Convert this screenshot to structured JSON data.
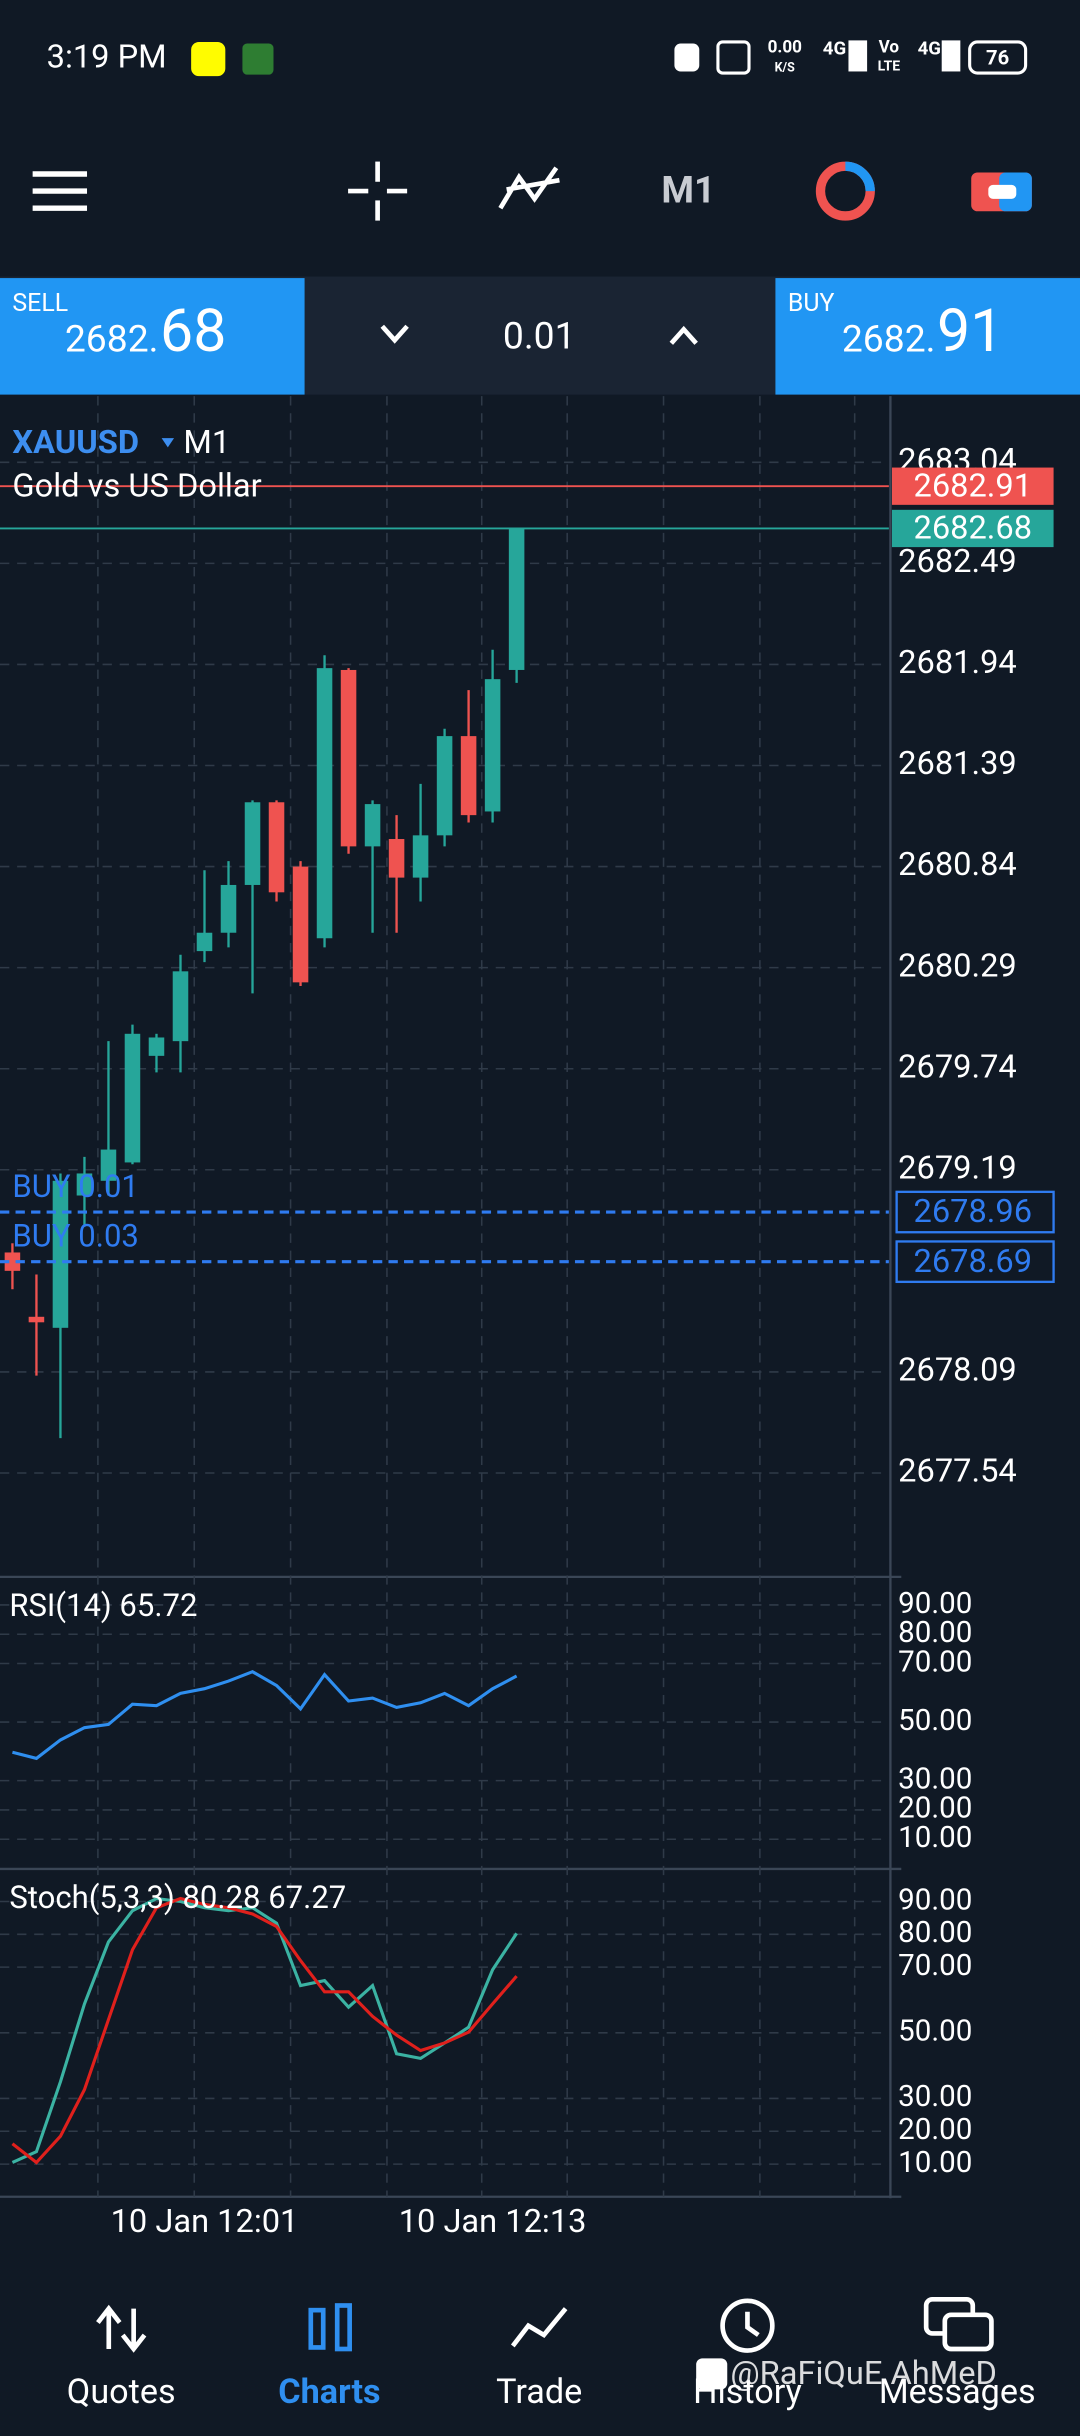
{
  "status_bar": {
    "time": "3:19 PM",
    "net_speed": "0.00",
    "net_unit": "K/S",
    "network_1": "4G",
    "volte": "Vo",
    "volte_sub": "LTE",
    "network_2": "4G",
    "battery": "76"
  },
  "toolbar": {
    "timeframe": "M1"
  },
  "trade_bar": {
    "sell_label": "SELL",
    "sell_price_main": "2682.",
    "sell_price_pips": "68",
    "volume": "0.01",
    "buy_label": "BUY",
    "buy_price_main": "2682.",
    "buy_price_pips": "91"
  },
  "chart_data": [
    {
      "type": "candlestick",
      "symbol": "XAUUSD",
      "timeframe": "M1",
      "description": "Gold vs US Dollar",
      "categories": [
        null,
        null,
        null,
        null,
        null,
        null,
        null,
        null,
        "10 Jan 12:01",
        null,
        null,
        null,
        null,
        null,
        null,
        null,
        null,
        null,
        null,
        null,
        "10 Jan 12:13",
        null
      ],
      "open": [
        2678.74,
        2678.39,
        2678.33,
        2679.05,
        2679.13,
        2679.23,
        2679.81,
        2679.89,
        2680.38,
        2680.48,
        2680.74,
        2681.19,
        2680.84,
        2680.45,
        2681.91,
        2680.95,
        2680.99,
        2680.78,
        2681.01,
        2681.55,
        2681.14,
        2681.91
      ],
      "high": [
        2678.79,
        2678.62,
        2679.17,
        2679.26,
        2679.89,
        2679.98,
        2679.93,
        2680.36,
        2680.82,
        2680.87,
        2681.2,
        2681.2,
        2680.87,
        2681.99,
        2681.92,
        2681.2,
        2681.12,
        2681.29,
        2681.59,
        2681.8,
        2682.02,
        2682.68
      ],
      "low": [
        2678.54,
        2678.07,
        2677.73,
        2678.88,
        2679.05,
        2679.22,
        2679.72,
        2679.72,
        2680.32,
        2680.4,
        2680.15,
        2680.65,
        2680.19,
        2680.4,
        2680.91,
        2680.48,
        2680.48,
        2680.65,
        2680.95,
        2681.08,
        2681.08,
        2681.84
      ],
      "close": [
        2678.64,
        2678.36,
        2679.13,
        2679.17,
        2679.3,
        2679.93,
        2679.91,
        2680.27,
        2680.48,
        2680.74,
        2681.19,
        2680.7,
        2680.21,
        2681.92,
        2680.95,
        2681.18,
        2680.78,
        2681.01,
        2681.55,
        2681.12,
        2681.86,
        2682.68
      ],
      "up_color": "#26a69a",
      "down_color": "#ef5350",
      "ylim": [
        2677.0,
        2683.4
      ],
      "yticks": [
        2683.04,
        2682.49,
        2681.94,
        2681.39,
        2680.84,
        2680.29,
        2679.74,
        2679.19,
        2678.09,
        2677.54
      ],
      "grid": true,
      "price_lines": [
        {
          "value": 2682.91,
          "color": "#ef5350"
        },
        {
          "value": 2682.68,
          "color": "#26a69a"
        }
      ],
      "orders": [
        {
          "label": "BUY 0.01",
          "value": 2678.96
        },
        {
          "label": "BUY 0.03",
          "value": 2678.69
        }
      ],
      "order_color": "#2f7bf0"
    },
    {
      "type": "line",
      "title": "RSI(14) 65.72",
      "series": [
        {
          "color": "#2f8ff0",
          "values": [
            39.7,
            37.6,
            43.9,
            48.1,
            49.2,
            56.1,
            55.6,
            59.8,
            61.4,
            64.0,
            67.2,
            62.5,
            54.5,
            66.2,
            57.2,
            58.2,
            55.0,
            56.6,
            59.8,
            55.6,
            61.4,
            65.72
          ]
        }
      ],
      "ylim": [
        2.5,
        98
      ],
      "yticks": [
        {
          "value": 90,
          "label": "90.00"
        },
        {
          "value": 80,
          "label": "80.00"
        },
        {
          "value": 70,
          "label": "70.00"
        },
        {
          "value": 50,
          "label": "50.00"
        },
        {
          "value": 30,
          "label": "30.00"
        },
        {
          "value": 20,
          "label": "20.00"
        },
        {
          "value": 10,
          "label": "10.00"
        }
      ],
      "grid": true
    },
    {
      "type": "line",
      "title": "Stoch(5,3,3) 80.28 67.27",
      "series": [
        {
          "color": "#3bb3a3",
          "values": [
            10.5,
            13.8,
            35.1,
            58.8,
            77.7,
            87.2,
            90.9,
            90.0,
            88.1,
            87.2,
            88.1,
            83.4,
            64.4,
            65.9,
            57.8,
            64.4,
            43.6,
            42.2,
            46.9,
            51.7,
            69.2,
            80.28
          ]
        },
        {
          "color": "#e0201c",
          "values": [
            16.2,
            10.5,
            18.5,
            32.7,
            54.0,
            75.3,
            88.1,
            90.9,
            89.1,
            88.1,
            86.2,
            82.4,
            72.0,
            62.5,
            62.5,
            55.0,
            49.3,
            44.6,
            46.9,
            50.2,
            58.8,
            67.27
          ]
        }
      ],
      "ylim": [
        1,
        98.5
      ],
      "yticks": [
        {
          "value": 90,
          "label": "90.00"
        },
        {
          "value": 80,
          "label": "80.00"
        },
        {
          "value": 70,
          "label": "70.00"
        },
        {
          "value": 50,
          "label": "50.00"
        },
        {
          "value": 30,
          "label": "30.00"
        },
        {
          "value": 20,
          "label": "20.00"
        },
        {
          "value": 10,
          "label": "10.00"
        }
      ],
      "grid": true
    }
  ],
  "nav": {
    "quotes": "Quotes",
    "charts": "Charts",
    "trade": "Trade",
    "history": "History",
    "messages": "Messages"
  },
  "watermark": "@RaFiQuE AhMeD"
}
